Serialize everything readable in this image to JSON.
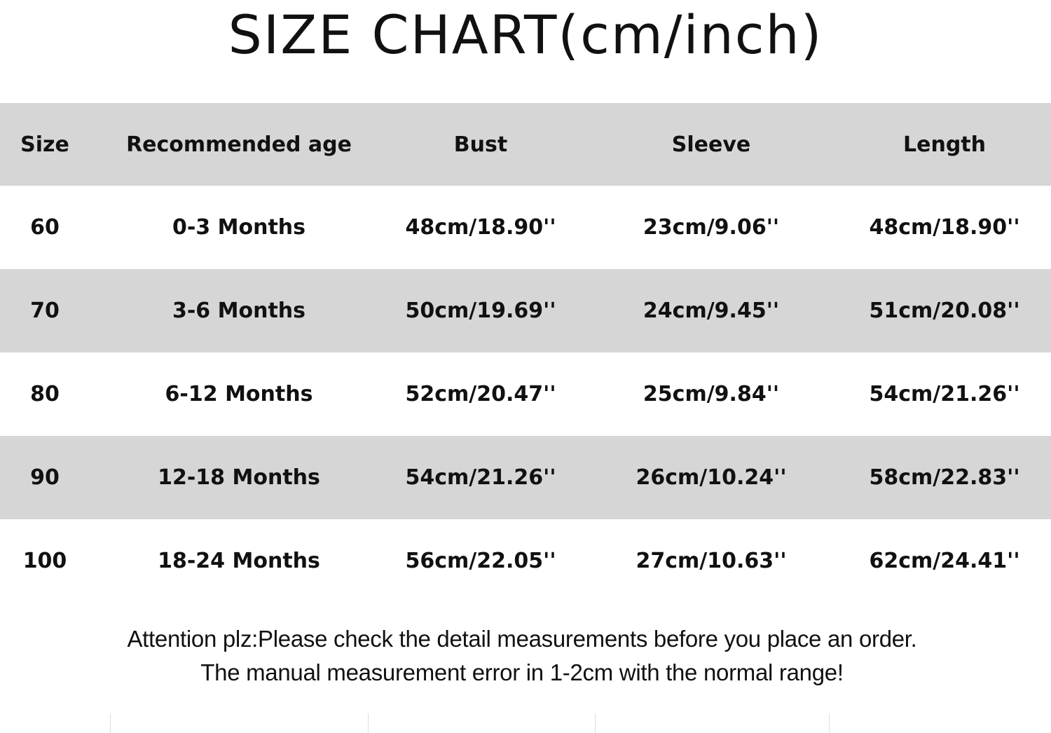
{
  "title": "SIZE CHART(cm/inch)",
  "table": {
    "headers": [
      "Size",
      "Recommended age",
      "Bust",
      "Sleeve",
      "Length"
    ],
    "rows": [
      [
        "60",
        "0-3 Months",
        "48cm/18.90''",
        "23cm/9.06''",
        "48cm/18.90''"
      ],
      [
        "70",
        "3-6 Months",
        "50cm/19.69''",
        "24cm/9.45''",
        "51cm/20.08''"
      ],
      [
        "80",
        "6-12 Months",
        "52cm/20.47''",
        "25cm/9.84''",
        "54cm/21.26''"
      ],
      [
        "90",
        "12-18 Months",
        "54cm/21.26''",
        "26cm/10.24''",
        "58cm/22.83''"
      ],
      [
        "100",
        "18-24 Months",
        "56cm/22.05''",
        "27cm/10.63''",
        "62cm/24.41''"
      ]
    ],
    "stripe_color": "#d6d6d6"
  },
  "notes": [
    "Attention plz:Please check the detail measurements before you place an order.",
    "The manual measurement error in 1-2cm with the normal range!"
  ]
}
